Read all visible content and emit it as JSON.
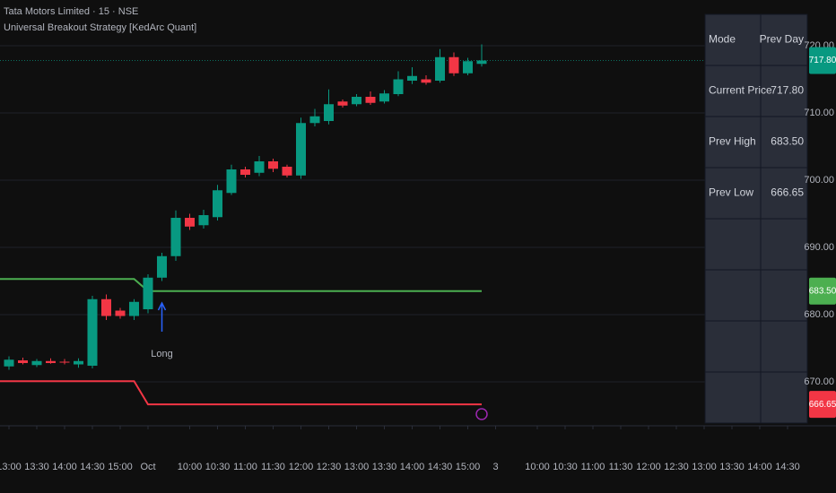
{
  "chart_data": {
    "type": "candlestick",
    "title": "Tata Motors Limited · 15 · NSE",
    "subtitle": "Universal Breakout Strategy [KedArc Quant]",
    "up_color": "#089981",
    "down_color": "#f23645",
    "open": [
      672.3,
      673.2,
      672.5,
      673.1,
      673.0,
      672.6,
      672.4,
      682.3,
      680.6,
      679.8,
      680.8,
      685.5,
      688.7,
      694.4,
      693.3,
      694.5,
      698.1,
      701.6,
      701.1,
      702.8,
      702.0,
      700.7,
      708.5,
      708.8,
      711.7,
      711.3,
      712.4,
      711.7,
      712.8,
      714.8,
      715.0,
      714.8,
      718.3,
      715.9,
      717.3
    ],
    "high": [
      673.8,
      673.6,
      673.4,
      673.5,
      673.4,
      673.5,
      682.8,
      683.0,
      681.0,
      682.3,
      686.0,
      689.2,
      695.5,
      695.0,
      695.6,
      699.3,
      702.3,
      702.0,
      703.6,
      703.2,
      702.3,
      709.3,
      710.6,
      713.5,
      712.0,
      712.8,
      713.2,
      713.4,
      716.2,
      716.8,
      715.6,
      719.5,
      719.0,
      718.2,
      720.2
    ],
    "low": [
      671.8,
      672.6,
      672.2,
      672.7,
      672.6,
      672.1,
      672.0,
      679.2,
      679.4,
      679.2,
      680.2,
      685.0,
      688.0,
      692.6,
      692.8,
      694.0,
      697.8,
      700.4,
      700.6,
      701.2,
      700.4,
      700.2,
      708.0,
      708.3,
      710.8,
      711.0,
      711.2,
      711.4,
      712.5,
      714.3,
      714.2,
      714.5,
      715.5,
      715.6,
      716.9
    ],
    "close": [
      673.3,
      672.8,
      673.1,
      672.8,
      672.9,
      673.1,
      682.3,
      679.8,
      679.8,
      681.9,
      685.5,
      688.7,
      694.4,
      693.1,
      694.8,
      698.5,
      701.6,
      700.8,
      702.8,
      701.7,
      700.7,
      708.5,
      709.5,
      711.3,
      711.1,
      712.4,
      711.5,
      712.9,
      715.0,
      715.5,
      714.5,
      718.3,
      715.9,
      717.7,
      717.8
    ],
    "level_lines": [
      {
        "color": "#4caf50",
        "values": [
          685.3,
          685.3,
          685.3,
          685.3,
          685.3,
          685.3,
          685.3,
          685.3,
          685.3,
          685.3,
          683.5,
          683.5,
          683.5,
          683.5,
          683.5,
          683.5,
          683.5,
          683.5,
          683.5,
          683.5,
          683.5,
          683.5,
          683.5,
          683.5,
          683.5,
          683.5,
          683.5,
          683.5,
          683.5,
          683.5,
          683.5,
          683.5,
          683.5,
          683.5,
          683.5
        ]
      },
      {
        "color": "#f23645",
        "values": [
          670.1,
          670.1,
          670.1,
          670.1,
          670.1,
          670.1,
          670.1,
          670.1,
          670.1,
          670.1,
          666.65,
          666.65,
          666.65,
          666.65,
          666.65,
          666.65,
          666.65,
          666.65,
          666.65,
          666.65,
          666.65,
          666.65,
          666.65,
          666.65,
          666.65,
          666.65,
          666.65,
          666.65,
          666.65,
          666.65,
          666.65,
          666.65,
          666.65,
          666.65,
          666.65
        ]
      }
    ],
    "signal": {
      "label": "Long",
      "x": 11,
      "color": "#2962ff"
    },
    "ylim": [
      663.47,
      726.8
    ],
    "yticks": [
      {
        "value": 670,
        "label": "670.00"
      },
      {
        "value": 680,
        "label": "680.00"
      },
      {
        "value": 690,
        "label": "690.00"
      },
      {
        "value": 700,
        "label": "700.00"
      },
      {
        "value": 710,
        "label": "710.00"
      },
      {
        "value": 720,
        "label": "720.00"
      }
    ],
    "price_tags": [
      {
        "value": 717.8,
        "label": "717.80",
        "color": "#089981"
      },
      {
        "value": 683.5,
        "label": "683.50",
        "color": "#4caf50"
      },
      {
        "value": 666.65,
        "label": "666.65",
        "color": "#f23645"
      }
    ],
    "xticks": [
      {
        "value": 0,
        "label": "13:00"
      },
      {
        "value": 2,
        "label": "13:30"
      },
      {
        "value": 4,
        "label": "14:00"
      },
      {
        "value": 6,
        "label": "14:30"
      },
      {
        "value": 8,
        "label": "15:00"
      },
      {
        "value": 10,
        "label": "Oct"
      },
      {
        "value": 13,
        "label": "10:00"
      },
      {
        "value": 15,
        "label": "10:30"
      },
      {
        "value": 17,
        "label": "11:00"
      },
      {
        "value": 19,
        "label": "11:30"
      },
      {
        "value": 21,
        "label": "12:00"
      },
      {
        "value": 23,
        "label": "12:30"
      },
      {
        "value": 25,
        "label": "13:00"
      },
      {
        "value": 27,
        "label": "13:30"
      },
      {
        "value": 29,
        "label": "14:00"
      },
      {
        "value": 31,
        "label": "14:30"
      },
      {
        "value": 33,
        "label": "15:00"
      },
      {
        "value": 35,
        "label": "3"
      },
      {
        "value": 38,
        "label": "10:00"
      },
      {
        "value": 40,
        "label": "10:30"
      },
      {
        "value": 42,
        "label": "11:00"
      },
      {
        "value": 44,
        "label": "11:30"
      },
      {
        "value": 46,
        "label": "12:00"
      },
      {
        "value": 48,
        "label": "12:30"
      },
      {
        "value": 50,
        "label": "13:00"
      },
      {
        "value": 52,
        "label": "13:30"
      },
      {
        "value": 54,
        "label": "14:00"
      },
      {
        "value": 56,
        "label": "14:30"
      }
    ],
    "table": [
      [
        "Mode",
        "Prev Day"
      ],
      [
        "Current Price",
        "717.80"
      ],
      [
        "Prev High",
        "683.50"
      ],
      [
        "Prev Low",
        "666.65"
      ],
      [
        null,
        null
      ],
      [
        null,
        null
      ],
      [
        null,
        null
      ],
      [
        null,
        null
      ]
    ]
  }
}
